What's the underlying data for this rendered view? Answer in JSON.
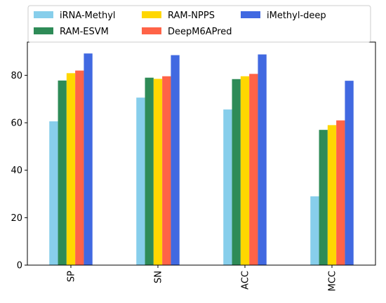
{
  "chart_data": {
    "type": "bar",
    "categories": [
      "SP",
      "SN",
      "ACC",
      "MCC"
    ],
    "series": [
      {
        "name": "iRNA-Methyl",
        "color": "#87ceeb",
        "values": [
          60.6,
          70.6,
          65.6,
          29.0
        ]
      },
      {
        "name": "RAM-ESVM",
        "color": "#2e8b57",
        "values": [
          77.8,
          79.0,
          78.4,
          57.0
        ]
      },
      {
        "name": "RAM-NPPS",
        "color": "#ffd700",
        "values": [
          80.9,
          78.5,
          79.6,
          59.0
        ]
      },
      {
        "name": "DeepM6APred",
        "color": "#ff6347",
        "values": [
          82.0,
          79.6,
          80.6,
          61.0
        ]
      },
      {
        "name": "iMethyl-deep",
        "color": "#4169e1",
        "values": [
          89.2,
          88.5,
          88.8,
          77.7
        ]
      }
    ],
    "yticks": [
      0,
      20,
      40,
      60,
      80
    ],
    "ylim": [
      0,
      94
    ],
    "title": "",
    "xlabel": "",
    "ylabel": "",
    "legend_position": "top"
  }
}
